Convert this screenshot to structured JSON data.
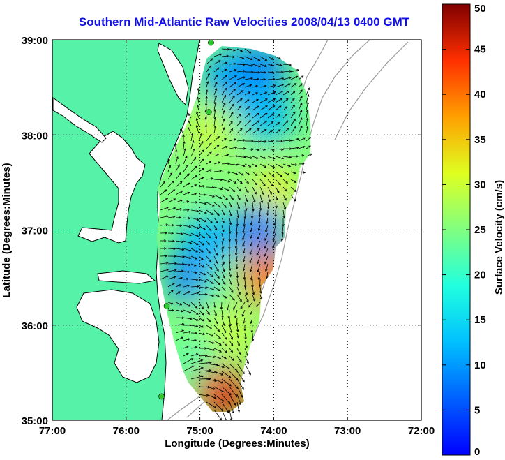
{
  "title": "Southern Mid-Atlantic Raw Velocities 2008/04/13 0400 GMT",
  "x_axis": {
    "label": "Longitude (Degrees:Minutes)",
    "ticks": [
      "77:00",
      "76:00",
      "75:00",
      "74:00",
      "73:00",
      "72:00"
    ],
    "range": [
      -77,
      -72
    ]
  },
  "y_axis": {
    "label": "Latitude (Degrees:Minutes)",
    "ticks": [
      "39:00",
      "38:00",
      "37:00",
      "36:00",
      "35:00"
    ],
    "range": [
      35,
      39
    ]
  },
  "colorbar": {
    "label": "Surface Velocity (cm/s)",
    "ticks": [
      "0",
      "5",
      "10",
      "15",
      "20",
      "25",
      "30",
      "35",
      "40",
      "45",
      "50"
    ],
    "range": [
      0,
      50
    ]
  },
  "colors": {
    "land": "#55f2a8",
    "water": "#ffffff",
    "title": "#1010e6",
    "coastline": "#000000",
    "bathymetry": "#9a9a9a",
    "grid": "#000000"
  },
  "grid": "dotted",
  "stations": [
    {
      "lon": -74.85,
      "lat": 38.97
    },
    {
      "lon": -74.88,
      "lat": 38.24
    },
    {
      "lon": -75.45,
      "lat": 36.2
    },
    {
      "lon": -75.52,
      "lat": 35.25
    }
  ],
  "velocity_regions": [
    {
      "lon": -74.2,
      "lat": 38.7,
      "speed": 8
    },
    {
      "lon": -74.6,
      "lat": 38.6,
      "speed": 10
    },
    {
      "lon": -74.1,
      "lat": 38.2,
      "speed": 12
    },
    {
      "lon": -74.9,
      "lat": 38.0,
      "speed": 30
    },
    {
      "lon": -75.1,
      "lat": 37.6,
      "speed": 25
    },
    {
      "lon": -74.0,
      "lat": 37.4,
      "speed": 32
    },
    {
      "lon": -74.2,
      "lat": 37.0,
      "speed": 8
    },
    {
      "lon": -74.9,
      "lat": 36.9,
      "speed": 12
    },
    {
      "lon": -75.1,
      "lat": 36.5,
      "speed": 8
    },
    {
      "lon": -74.6,
      "lat": 36.4,
      "speed": 24
    },
    {
      "lon": -74.1,
      "lat": 36.5,
      "speed": 40
    },
    {
      "lon": -74.6,
      "lat": 35.9,
      "speed": 30
    },
    {
      "lon": -75.0,
      "lat": 35.6,
      "speed": 22
    },
    {
      "lon": -74.7,
      "lat": 35.3,
      "speed": 45
    }
  ]
}
